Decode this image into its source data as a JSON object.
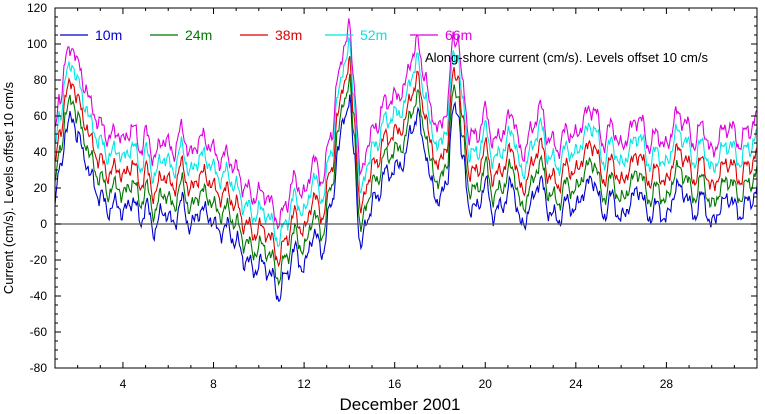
{
  "chart_data": {
    "type": "line",
    "title": "",
    "annotation": "Along-shore current (cm/s). Levels offset 10 cm/s",
    "xlabel": "December 2001",
    "ylabel": "Current (cm/s). Levels offset 10 cm/s",
    "xlim": [
      1,
      32
    ],
    "ylim": [
      -80,
      120
    ],
    "xticks": [
      4,
      8,
      12,
      16,
      20,
      24,
      28
    ],
    "yticks": [
      -80,
      -60,
      -40,
      -20,
      0,
      20,
      40,
      60,
      80,
      100,
      120
    ],
    "zero_line": true,
    "grid": false,
    "legend_position": "top-left",
    "series": [
      {
        "name": "10m",
        "color": "#0000cc",
        "offset": 0
      },
      {
        "name": "24m",
        "color": "#007700",
        "offset": 10
      },
      {
        "name": "38m",
        "color": "#dd0000",
        "offset": 20
      },
      {
        "name": "52m",
        "color": "#00e5e5",
        "offset": 30
      },
      {
        "name": "66m",
        "color": "#dd00dd",
        "offset": 40
      }
    ],
    "base_curve": {
      "x": [
        1.0,
        1.2,
        1.5,
        1.8,
        2.0,
        2.3,
        2.6,
        3.0,
        3.4,
        3.8,
        4.0,
        4.4,
        4.8,
        5.0,
        5.4,
        5.8,
        6.2,
        6.6,
        7.0,
        7.4,
        7.8,
        8.2,
        8.6,
        9.0,
        9.4,
        9.8,
        10.2,
        10.6,
        10.9,
        11.2,
        11.6,
        12.0,
        12.4,
        12.8,
        13.2,
        13.5,
        13.8,
        14.0,
        14.2,
        14.5,
        14.8,
        15.2,
        15.6,
        16.0,
        16.4,
        16.8,
        17.0,
        17.3,
        17.6,
        18.0,
        18.3,
        18.6,
        18.8,
        19.0,
        19.3,
        19.6,
        20.0,
        20.4,
        20.8,
        21.2,
        21.6,
        22.0,
        22.4,
        22.8,
        23.2,
        23.6,
        24.0,
        24.4,
        24.8,
        25.2,
        25.6,
        26.0,
        26.4,
        26.8,
        27.2,
        27.6,
        28.0,
        28.4,
        28.8,
        29.2,
        29.6,
        30.0,
        30.4,
        30.8,
        31.2,
        31.6,
        32.0
      ],
      "y": [
        10,
        30,
        52,
        60,
        48,
        38,
        25,
        15,
        8,
        12,
        5,
        14,
        2,
        10,
        -3,
        8,
        0,
        12,
        -2,
        8,
        5,
        -4,
        -2,
        -10,
        -20,
        -25,
        -22,
        -30,
        -40,
        -28,
        -15,
        -25,
        -5,
        -15,
        10,
        40,
        62,
        68,
        40,
        -15,
        5,
        15,
        28,
        30,
        35,
        55,
        60,
        45,
        22,
        12,
        25,
        62,
        65,
        35,
        10,
        8,
        22,
        5,
        12,
        22,
        -2,
        10,
        25,
        8,
        2,
        12,
        8,
        20,
        25,
        5,
        15,
        2,
        12,
        20,
        4,
        10,
        2,
        20,
        18,
        5,
        15,
        -1,
        10,
        15,
        5,
        12,
        18
      ]
    }
  }
}
